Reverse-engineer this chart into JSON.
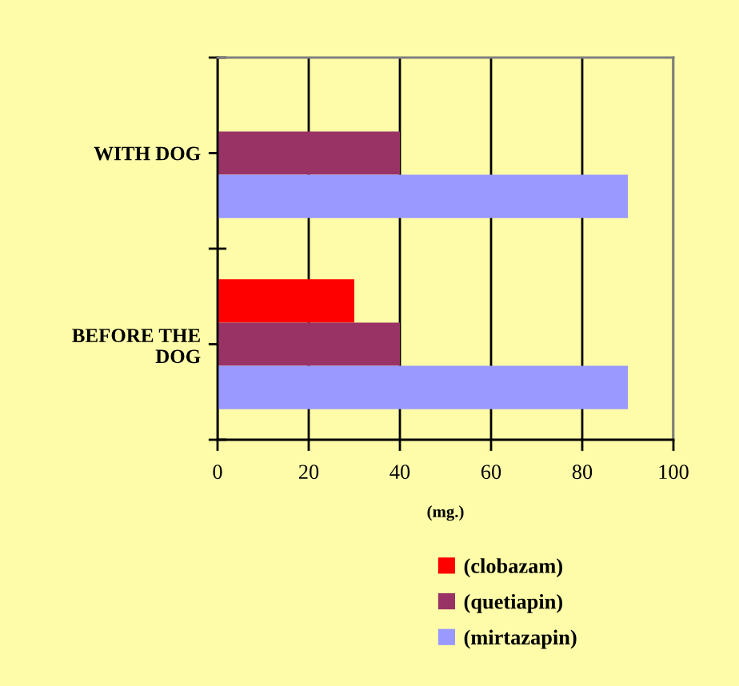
{
  "chart_data": {
    "type": "bar",
    "orientation": "horizontal",
    "categories": [
      "WITH DOG",
      "BEFORE THE\nDOG"
    ],
    "series": [
      {
        "name": "(clobazam)",
        "color": "#ff0000",
        "values": [
          null,
          30
        ]
      },
      {
        "name": "(quetiapin)",
        "color": "#993366",
        "values": [
          40,
          40
        ]
      },
      {
        "name": "(mirtazapin)",
        "color": "#9999ff",
        "values": [
          90,
          90
        ]
      }
    ],
    "xlabel": "(mg.)",
    "xlim": [
      0,
      100
    ],
    "xticks": [
      0,
      20,
      40,
      60,
      80,
      100
    ],
    "grid": "x",
    "legend": "bottom"
  }
}
